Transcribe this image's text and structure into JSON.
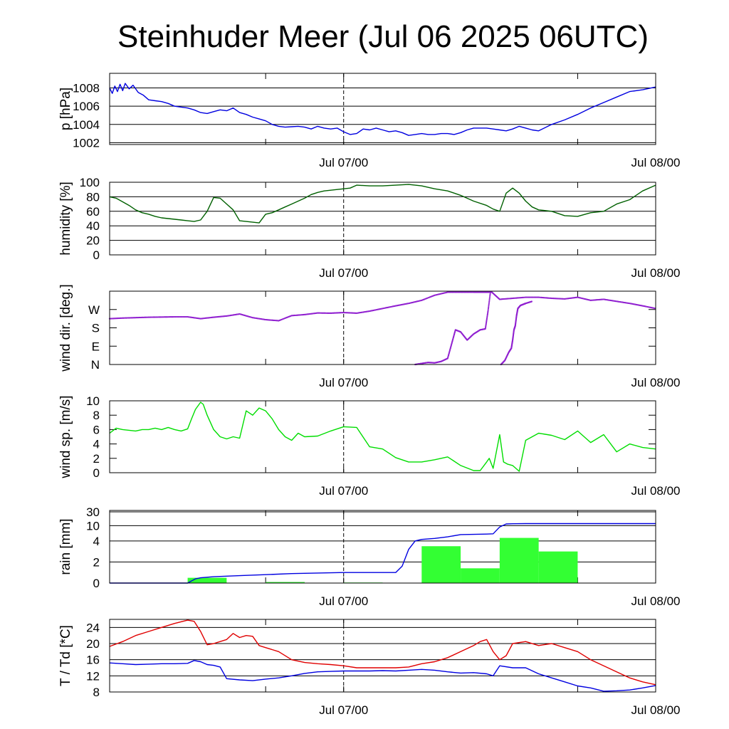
{
  "title": "Steinhuder Meer (Jul 06 2025 06UTC)",
  "x_axis": {
    "start": "Jul 06 06:00",
    "end": "Jul 08 00:00",
    "tick_labels": [
      "Jul 07/00",
      "Jul 08/00"
    ],
    "tick_hours": [
      18,
      42
    ],
    "minor_tick_hours": [
      12,
      36
    ],
    "dashed_marker_hour": 18
  },
  "chart_data": [
    {
      "type": "line",
      "name": "pressure",
      "ylabel": "p [hPa]",
      "ylim": [
        1001.8,
        1009.6
      ],
      "yticks": [
        1002,
        1004,
        1006,
        1008
      ],
      "ytick_labels": [
        "1002",
        "1004",
        "1006",
        "1008"
      ],
      "grid": true,
      "series": [
        {
          "color": "#0000e0",
          "x": [
            0,
            0.2,
            0.4,
            0.6,
            0.8,
            1.0,
            1.2,
            1.5,
            1.8,
            2.2,
            2.6,
            3.0,
            3.5,
            4,
            4.5,
            5,
            5.5,
            6,
            6.5,
            7,
            7.5,
            8,
            8.5,
            9,
            9.5,
            10,
            10.5,
            11,
            11.5,
            12,
            12.5,
            13,
            13.5,
            14,
            14.5,
            15,
            15.5,
            16,
            16.5,
            17,
            17.5,
            18,
            18.5,
            19,
            19.5,
            20,
            20.5,
            21,
            21.5,
            22,
            22.5,
            23,
            23.5,
            24,
            24.5,
            25,
            25.5,
            26,
            26.5,
            27,
            27.5,
            28,
            28.5,
            29,
            29.5,
            30,
            30.5,
            31,
            31.5,
            32,
            32.5,
            33,
            34,
            35,
            36,
            37,
            38,
            39,
            40,
            41,
            42
          ],
          "y": [
            1008,
            1007.4,
            1008.2,
            1007.6,
            1008.4,
            1007.7,
            1008.5,
            1007.9,
            1008.3,
            1007.5,
            1007.2,
            1006.7,
            1006.6,
            1006.5,
            1006.3,
            1006.0,
            1005.9,
            1005.8,
            1005.6,
            1005.3,
            1005.2,
            1005.4,
            1005.6,
            1005.5,
            1005.8,
            1005.3,
            1005.1,
            1004.8,
            1004.6,
            1004.4,
            1004.0,
            1003.8,
            1003.7,
            1003.75,
            1003.8,
            1003.7,
            1003.5,
            1003.8,
            1003.6,
            1003.5,
            1003.6,
            1003.2,
            1002.9,
            1003.0,
            1003.5,
            1003.4,
            1003.6,
            1003.4,
            1003.2,
            1003.3,
            1003.1,
            1002.8,
            1002.9,
            1003.0,
            1002.9,
            1002.9,
            1003.0,
            1003.0,
            1002.9,
            1003.1,
            1003.4,
            1003.6,
            1003.6,
            1003.6,
            1003.5,
            1003.4,
            1003.3,
            1003.5,
            1003.8,
            1003.6,
            1003.4,
            1003.3,
            1004.0,
            1004.5,
            1005.1,
            1005.8,
            1006.4,
            1007.0,
            1007.6,
            1007.8,
            1008.1
          ]
        }
      ]
    },
    {
      "type": "line",
      "name": "humidity",
      "ylabel": "humidity [%]",
      "ylim": [
        0,
        100
      ],
      "yticks": [
        0,
        20,
        40,
        60,
        80,
        100
      ],
      "ytick_labels": [
        "0",
        "20",
        "40",
        "60",
        "80",
        "100"
      ],
      "grid": true,
      "series": [
        {
          "color": "#006000",
          "x": [
            0,
            0.5,
            1,
            1.5,
            2,
            2.5,
            3,
            3.5,
            4,
            4.5,
            5,
            5.5,
            6,
            6.5,
            7,
            7.5,
            8,
            8.5,
            9,
            9.5,
            10,
            10.5,
            11,
            11.5,
            12,
            12.5,
            13,
            13.5,
            14,
            14.5,
            15,
            15.5,
            16,
            16.5,
            17,
            17.5,
            18,
            18.5,
            19,
            20,
            21,
            22,
            23,
            24,
            25,
            26,
            27,
            28,
            29,
            29.5,
            30,
            30.5,
            31,
            31.5,
            32,
            32.5,
            33,
            34,
            35,
            36,
            37,
            38,
            39,
            40,
            41,
            42
          ],
          "y": [
            80,
            78,
            73,
            68,
            62,
            58,
            56,
            53,
            51,
            50,
            49,
            48,
            47,
            46,
            48,
            60,
            79,
            78,
            70,
            62,
            47,
            46,
            45,
            44,
            56,
            58,
            62,
            66,
            70,
            74,
            78,
            83,
            86,
            88,
            89,
            90,
            91,
            92,
            96,
            95,
            95,
            96,
            97,
            95,
            91,
            88,
            82,
            74,
            68,
            63,
            60,
            85,
            92,
            85,
            74,
            66,
            62,
            60,
            54,
            53,
            58,
            60,
            70,
            76,
            88,
            96
          ]
        }
      ]
    },
    {
      "type": "scatter",
      "name": "wind-direction",
      "ylabel": "wind dir. [deg.]",
      "ylim": [
        0,
        360
      ],
      "yticks": [
        0,
        90,
        180,
        270
      ],
      "ytick_labels": [
        "N",
        "E",
        "S",
        "W"
      ],
      "grid": false,
      "series": [
        {
          "color": "#9020d0",
          "x": [
            0,
            1,
            2,
            3,
            4,
            5,
            6,
            7,
            8,
            9,
            10,
            11,
            12,
            13,
            14,
            15,
            16,
            17,
            18,
            19,
            20,
            21,
            22,
            23,
            24,
            25,
            26,
            27,
            28,
            28.5,
            28.9,
            29.2,
            29.4,
            30,
            31,
            32,
            33,
            34,
            35,
            36,
            37,
            38,
            39,
            40,
            41,
            42
          ],
          "y": [
            225,
            228,
            230,
            232,
            233,
            234,
            234,
            225,
            232,
            238,
            248,
            230,
            220,
            215,
            240,
            245,
            253,
            252,
            255,
            252,
            262,
            275,
            288,
            300,
            315,
            340,
            355,
            355,
            355,
            355,
            355,
            355,
            355,
            320,
            325,
            330,
            330,
            325,
            322,
            330,
            315,
            320,
            310,
            300,
            288,
            275
          ]
        },
        {
          "color": "#9020d0",
          "x": [
            23.5,
            24,
            24.5,
            25,
            25.5,
            26,
            26.3,
            26.6,
            27,
            27.5,
            28,
            28.5,
            28.9,
            29.1,
            29.3
          ],
          "y": [
            0,
            5,
            10,
            8,
            15,
            30,
            100,
            170,
            160,
            120,
            150,
            170,
            175,
            260,
            360
          ]
        },
        {
          "color": "#9020d0",
          "x": [
            30.1,
            30.4,
            30.7,
            30.9,
            31,
            31.1,
            31.2,
            31.3,
            31.4,
            31.6,
            31.8,
            32,
            32.5
          ],
          "y": [
            0,
            20,
            60,
            80,
            120,
            170,
            190,
            240,
            275,
            290,
            295,
            300,
            310
          ]
        }
      ]
    },
    {
      "type": "line",
      "name": "wind-speed",
      "ylabel": "wind sp. [m/s]",
      "ylim": [
        0,
        10
      ],
      "yticks": [
        0,
        2,
        4,
        6,
        8,
        10
      ],
      "ytick_labels": [
        "0",
        "2",
        "4",
        "6",
        "8",
        "10"
      ],
      "grid": false,
      "series": [
        {
          "color": "#00dd00",
          "x": [
            0,
            0.5,
            1,
            1.5,
            2,
            2.5,
            3,
            3.5,
            4,
            4.5,
            5,
            5.5,
            6,
            6.3,
            6.6,
            7,
            7.2,
            7.5,
            8,
            8.5,
            9,
            9.5,
            10,
            10.5,
            11,
            11.5,
            12,
            12.5,
            13,
            13.5,
            14,
            14.5,
            15,
            16,
            17,
            18,
            19,
            20,
            21,
            22,
            23,
            24,
            25,
            26,
            27,
            28,
            28.2,
            28.5,
            29,
            29.2,
            29.5,
            30,
            30.3,
            30.6,
            31,
            31.5,
            32,
            33,
            34,
            35,
            36,
            37,
            38,
            39,
            40,
            41,
            42
          ],
          "y": [
            5.5,
            6.2,
            6.0,
            5.9,
            5.8,
            6.0,
            6.0,
            6.2,
            6.0,
            6.3,
            6.0,
            5.8,
            6.1,
            7.5,
            8.8,
            9.8,
            9.5,
            8,
            6,
            5,
            4.7,
            5.0,
            4.8,
            8.6,
            8.0,
            9.0,
            8.6,
            7.5,
            6.0,
            5.0,
            4.5,
            5.5,
            5.0,
            5.1,
            5.8,
            6.4,
            6.3,
            3.6,
            3.3,
            2.1,
            1.5,
            1.5,
            1.8,
            2.2,
            1.0,
            0.3,
            0.3,
            0.3,
            1.5,
            2.0,
            0.6,
            5.3,
            1.5,
            1.2,
            1.0,
            0.2,
            4.5,
            5.5,
            5.2,
            4.6,
            5.8,
            4.2,
            5.3,
            2.9,
            4.0,
            3.5,
            3.3
          ]
        }
      ]
    },
    {
      "type": "bar",
      "name": "rain",
      "ylabel": "rain [mm]",
      "yticks": [
        0,
        2,
        4,
        10,
        30
      ],
      "ytick_labels": [
        "0",
        "2",
        "4",
        "10",
        "30"
      ],
      "grid": true,
      "series": [
        {
          "type": "bar",
          "color": "#33ff33",
          "bar_starts": [
            0,
            3,
            6,
            9,
            12,
            15,
            18,
            21,
            24,
            27,
            30,
            33,
            36,
            39
          ],
          "values": [
            0,
            0,
            0.5,
            0,
            0.1,
            0,
            0.05,
            0,
            3.5,
            1.4,
            5.2,
            3.0,
            0,
            0
          ]
        },
        {
          "type": "line",
          "color": "#0000e0",
          "x": [
            0,
            6,
            6.3,
            6.6,
            7,
            8,
            10,
            12,
            14,
            16,
            18,
            20,
            21,
            22,
            22.5,
            23,
            23.5,
            24,
            25,
            26,
            27,
            28,
            29,
            29.5,
            30,
            30.5,
            31,
            32,
            34,
            36,
            38,
            40,
            42
          ],
          "y": [
            0,
            0,
            0.2,
            0.4,
            0.5,
            0.6,
            0.7,
            0.8,
            0.9,
            0.95,
            1.0,
            1.0,
            1.0,
            1.0,
            1.6,
            3.2,
            4.0,
            4.6,
            5.0,
            5.6,
            6.5,
            6.6,
            6.7,
            6.8,
            9.5,
            12.5,
            12.8,
            13.0,
            13.0,
            13.0,
            13.0,
            13.0,
            13.0
          ]
        }
      ]
    },
    {
      "type": "line",
      "name": "temperature",
      "ylabel": "T / Td [*C]",
      "ylim": [
        8,
        26
      ],
      "yticks": [
        8,
        12,
        16,
        20,
        24
      ],
      "ytick_labels": [
        "8",
        "12",
        "16",
        "20",
        "24"
      ],
      "grid": true,
      "series": [
        {
          "color": "#e00000",
          "x": [
            0,
            1,
            2,
            3,
            4,
            5,
            6,
            6.5,
            7,
            7.5,
            8,
            8.5,
            9,
            9.5,
            10,
            10.5,
            11,
            11.5,
            12,
            12.5,
            13,
            14,
            15,
            16,
            17,
            18,
            19,
            20,
            21,
            22,
            23,
            24,
            25,
            26,
            27,
            28,
            28.5,
            29,
            29.5,
            30,
            30.5,
            31,
            32,
            33,
            34,
            35,
            36,
            37,
            38,
            39,
            40,
            41,
            42
          ],
          "y": [
            19.3,
            20.5,
            22,
            23,
            24,
            25,
            25.8,
            25.5,
            23,
            19.7,
            20,
            20.5,
            21,
            22.5,
            21.5,
            22,
            21.8,
            19.5,
            19.0,
            18.5,
            18.0,
            16.0,
            15.3,
            15.0,
            14.8,
            14.5,
            14.0,
            14.0,
            14.0,
            14.0,
            14.2,
            15.0,
            15.5,
            16.5,
            18.0,
            19.5,
            20.5,
            21.0,
            18.0,
            16.0,
            17.0,
            20.0,
            20.5,
            19.5,
            20.0,
            19.0,
            18.0,
            16.0,
            14.5,
            13.0,
            11.5,
            10.5,
            9.8
          ]
        },
        {
          "color": "#0000e0",
          "x": [
            0,
            1,
            2,
            3,
            4,
            5,
            6,
            6.5,
            7,
            7.5,
            8,
            8.5,
            9,
            10,
            11,
            12,
            13,
            14,
            15,
            16,
            17,
            18,
            19,
            20,
            21,
            22,
            23,
            24,
            25,
            26,
            27,
            28,
            29,
            29.5,
            30,
            31,
            32,
            33,
            34,
            35,
            36,
            37,
            38,
            39,
            40,
            41,
            42
          ],
          "y": [
            15.2,
            15.0,
            14.8,
            14.9,
            15.0,
            15.0,
            15.1,
            15.8,
            15.5,
            14.8,
            14.6,
            14.2,
            11.3,
            11.0,
            10.8,
            11.2,
            11.5,
            12.0,
            12.6,
            13.0,
            13.1,
            13.2,
            13.2,
            13.2,
            13.3,
            13.2,
            13.4,
            13.6,
            13.4,
            13.0,
            12.7,
            12.8,
            12.5,
            12.0,
            14.5,
            14.0,
            14.0,
            12.5,
            11.5,
            10.5,
            9.5,
            9.0,
            8.2,
            8.3,
            8.5,
            9.0,
            9.6
          ]
        }
      ]
    }
  ]
}
